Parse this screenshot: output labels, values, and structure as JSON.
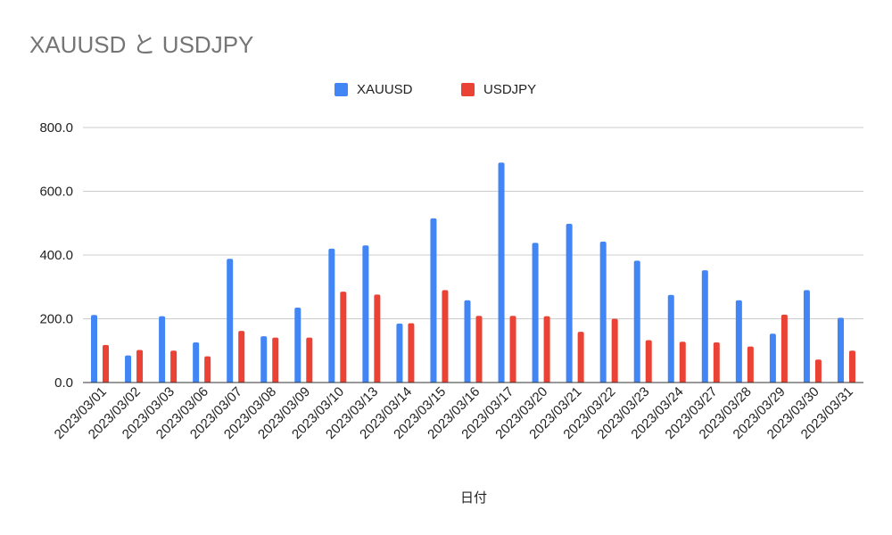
{
  "chart_data": {
    "type": "bar",
    "title": "XAUUSD と USDJPY",
    "xlabel": "日付",
    "ylabel": "",
    "ylim": [
      0,
      800
    ],
    "yticks": [
      "0.0",
      "200.0",
      "400.0",
      "600.0",
      "800.0"
    ],
    "categories": [
      "2023/03/01",
      "2023/03/02",
      "2023/03/03",
      "2023/03/06",
      "2023/03/07",
      "2023/03/08",
      "2023/03/09",
      "2023/03/10",
      "2023/03/13",
      "2023/03/14",
      "2023/03/15",
      "2023/03/16",
      "2023/03/17",
      "2023/03/20",
      "2023/03/21",
      "2023/03/22",
      "2023/03/23",
      "2023/03/24",
      "2023/03/27",
      "2023/03/28",
      "2023/03/29",
      "2023/03/30",
      "2023/03/31"
    ],
    "series": [
      {
        "name": "XAUUSD",
        "color": "#4285f4",
        "values": [
          212,
          85,
          208,
          126,
          388,
          145,
          235,
          420,
          430,
          185,
          515,
          258,
          690,
          438,
          498,
          442,
          382,
          275,
          352,
          258,
          153,
          290,
          203
        ]
      },
      {
        "name": "USDJPY",
        "color": "#ea4335",
        "values": [
          118,
          102,
          100,
          82,
          162,
          141,
          141,
          285,
          276,
          186,
          290,
          209,
          209,
          208,
          159,
          200,
          133,
          128,
          126,
          113,
          213,
          72,
          100
        ]
      }
    ],
    "grid": true,
    "legend_position": "top"
  }
}
